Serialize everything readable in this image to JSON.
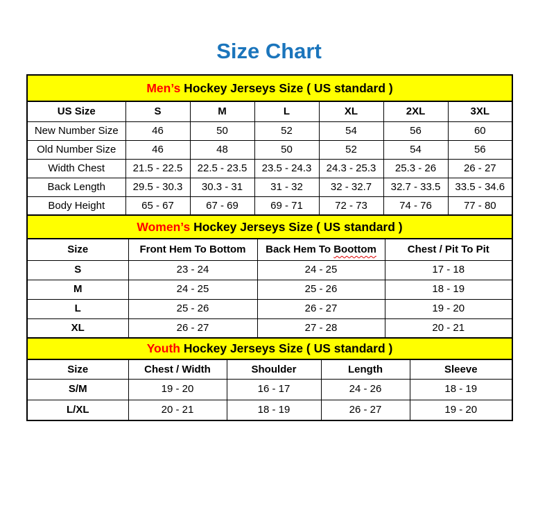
{
  "page": {
    "title": "Size Chart"
  },
  "colors": {
    "title_blue": "#1B75BC",
    "band_yellow": "#FFFF00",
    "accent_red": "#FF0000",
    "squiggle_red": "#E00000",
    "border_black": "#000000"
  },
  "chart_data": [
    {
      "type": "table",
      "id": "mens",
      "title_accent": "Men’s",
      "title_rest": " Hockey Jerseys Size ( US standard )",
      "columns": [
        "US Size",
        "S",
        "M",
        "L",
        "XL",
        "2XL",
        "3XL"
      ],
      "rows": [
        {
          "label": "New Number Size",
          "values": [
            "46",
            "50",
            "52",
            "54",
            "56",
            "60"
          ]
        },
        {
          "label": "Old Number Size",
          "values": [
            "46",
            "48",
            "50",
            "52",
            "54",
            "56"
          ]
        },
        {
          "label": "Width Chest",
          "values": [
            "21.5 - 22.5",
            "22.5 - 23.5",
            "23.5 - 24.3",
            "24.3 - 25.3",
            "25.3 - 26",
            "26 - 27"
          ]
        },
        {
          "label": "Back Length",
          "values": [
            "29.5 - 30.3",
            "30.3 - 31",
            "31 - 32",
            "32 - 32.7",
            "32.7 - 33.5",
            "33.5 - 34.6"
          ]
        },
        {
          "label": "Body Height",
          "values": [
            "65 - 67",
            "67 - 69",
            "69 - 71",
            "72 - 73",
            "74 - 76",
            "77 - 80"
          ]
        }
      ],
      "bold_row_labels": false
    },
    {
      "type": "table",
      "id": "womens",
      "title_accent": "Women’s",
      "title_rest": " Hockey Jerseys Size ( US standard )",
      "columns": [
        "Size",
        "Front Hem To Bottom",
        "Back Hem To Boottom",
        "Chest / Pit To Pit"
      ],
      "squiggle": {
        "column": 2,
        "word": "Boottom"
      },
      "rows": [
        {
          "label": "S",
          "values": [
            "23 - 24",
            "24 - 25",
            "17 - 18"
          ]
        },
        {
          "label": "M",
          "values": [
            "24 - 25",
            "25 - 26",
            "18 - 19"
          ]
        },
        {
          "label": "L",
          "values": [
            "25 - 26",
            "26 - 27",
            "19 - 20"
          ]
        },
        {
          "label": "XL",
          "values": [
            "26 - 27",
            "27 - 28",
            "20 - 21"
          ]
        }
      ],
      "bold_row_labels": true
    },
    {
      "type": "table",
      "id": "youth",
      "title_accent": "Youth",
      "title_rest": " Hockey Jerseys Size ( US standard )",
      "columns": [
        "Size",
        "Chest / Width",
        "Shoulder",
        "Length",
        "Sleeve"
      ],
      "rows": [
        {
          "label": "S/M",
          "values": [
            "19 - 20",
            "16 - 17",
            "24 - 26",
            "18 - 19"
          ]
        },
        {
          "label": "L/XL",
          "values": [
            "20 - 21",
            "18 - 19",
            "26 - 27",
            "19 - 20"
          ]
        }
      ],
      "bold_row_labels": true
    }
  ]
}
